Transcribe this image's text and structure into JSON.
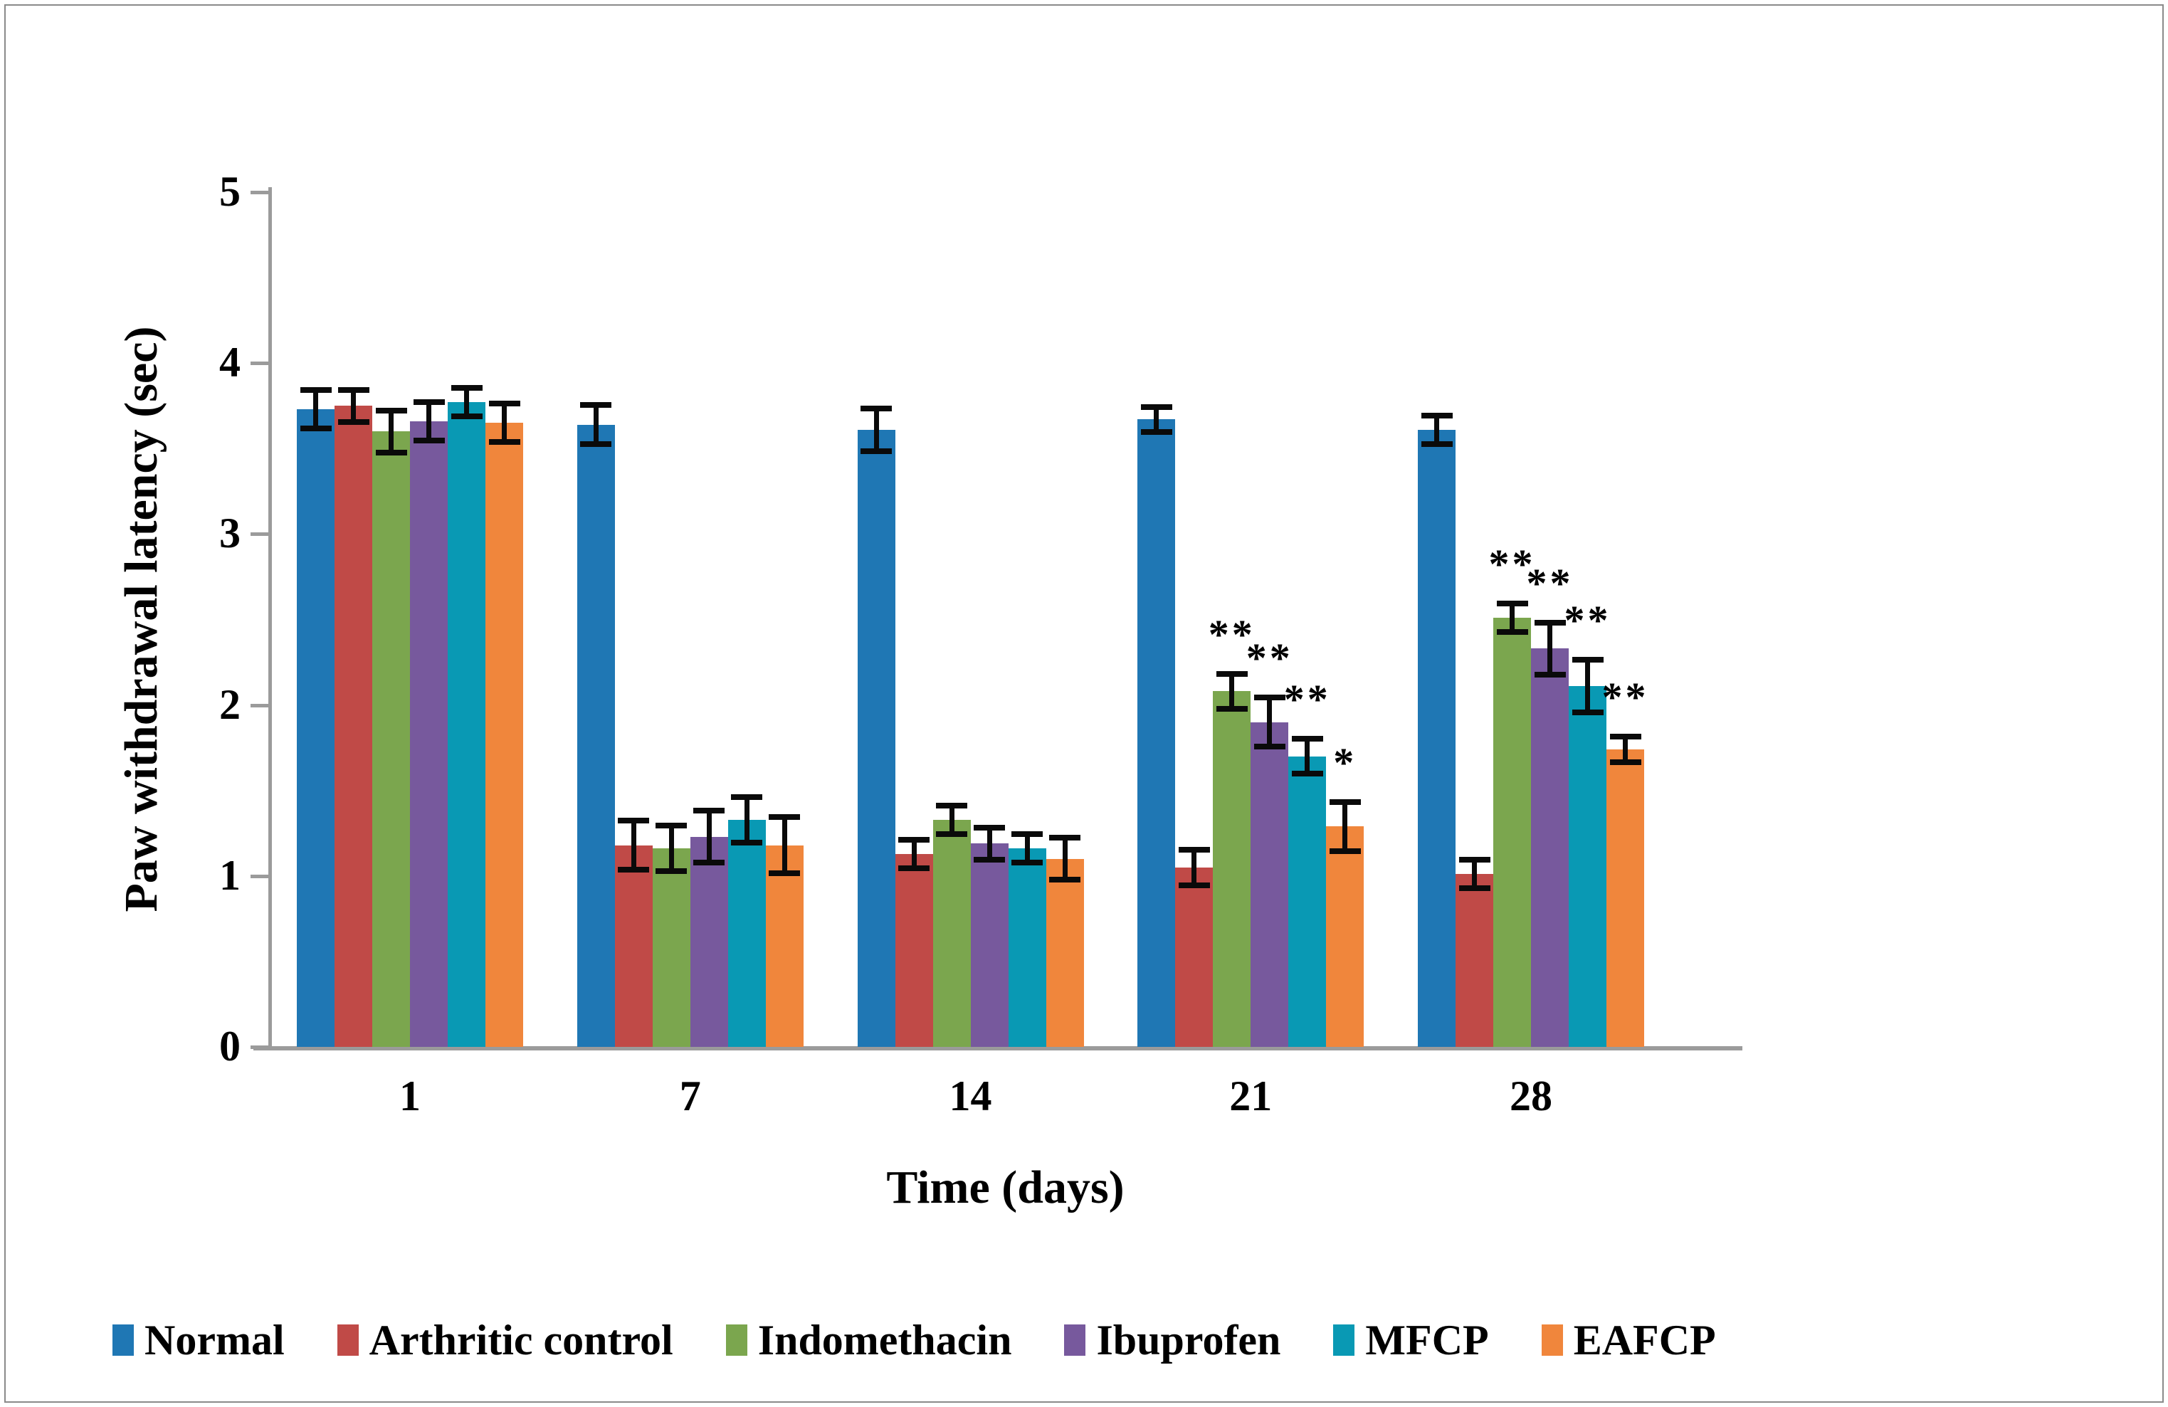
{
  "chart_data": {
    "type": "bar",
    "title": "",
    "xlabel": "Time (days)",
    "ylabel": "Paw withdrawal latency (sec)",
    "categories": [
      "1",
      "7",
      "14",
      "21",
      "28"
    ],
    "y_ticks": [
      0,
      1,
      2,
      3,
      4,
      5
    ],
    "ylim": [
      0,
      5
    ],
    "grid": false,
    "legend_position": "bottom",
    "error_bar_color": "#0a0a0a",
    "axis_color": "#9b9b9b",
    "series": [
      {
        "name": "Normal",
        "color": "#1F77B4",
        "values": [
          3.73,
          3.64,
          3.61,
          3.67,
          3.61
        ],
        "errors": [
          0.13,
          0.13,
          0.14,
          0.09,
          0.1
        ],
        "sig": [
          "",
          "",
          "",
          "",
          ""
        ]
      },
      {
        "name": "Arthritic control",
        "color": "#C04A47",
        "values": [
          3.75,
          1.18,
          1.13,
          1.05,
          1.01
        ],
        "errors": [
          0.11,
          0.16,
          0.1,
          0.12,
          0.1
        ],
        "sig": [
          "",
          "",
          "",
          "",
          ""
        ]
      },
      {
        "name": "Indomethacin",
        "color": "#7BA64E",
        "values": [
          3.6,
          1.16,
          1.33,
          2.08,
          2.51
        ],
        "errors": [
          0.14,
          0.15,
          0.1,
          0.12,
          0.1
        ],
        "sig": [
          "",
          "",
          "",
          "**",
          "**"
        ]
      },
      {
        "name": "Ibuprofen",
        "color": "#77599D",
        "values": [
          3.66,
          1.23,
          1.19,
          1.9,
          2.33
        ],
        "errors": [
          0.13,
          0.17,
          0.11,
          0.16,
          0.17
        ],
        "sig": [
          "",
          "",
          "",
          "**",
          "**"
        ]
      },
      {
        "name": "MFCP",
        "color": "#0999B4",
        "values": [
          3.77,
          1.33,
          1.16,
          1.7,
          2.11
        ],
        "errors": [
          0.1,
          0.15,
          0.1,
          0.12,
          0.17
        ],
        "sig": [
          "",
          "",
          "",
          "**",
          "**"
        ]
      },
      {
        "name": "EAFCP",
        "color": "#F0863C",
        "values": [
          3.65,
          1.18,
          1.1,
          1.29,
          1.74
        ],
        "errors": [
          0.13,
          0.18,
          0.14,
          0.16,
          0.09
        ],
        "sig": [
          "",
          "",
          "",
          "*",
          "**"
        ]
      }
    ]
  }
}
